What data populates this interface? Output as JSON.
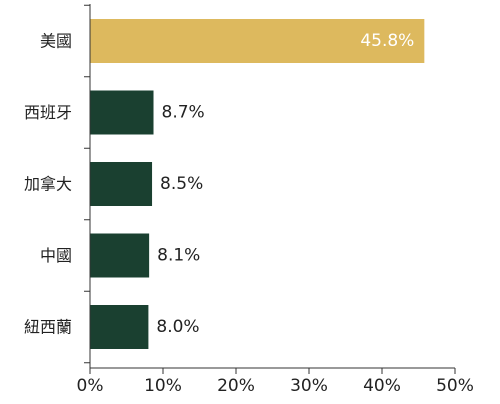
{
  "chart_data": {
    "type": "bar",
    "orientation": "horizontal",
    "categories": [
      "美國",
      "西班牙",
      "加拿大",
      "中國",
      "紐西蘭"
    ],
    "values": [
      45.8,
      8.7,
      8.5,
      8.1,
      8.0
    ],
    "value_labels": [
      "45.8%",
      "8.7%",
      "8.5%",
      "8.1%",
      "8.0%"
    ],
    "xlim": [
      0,
      50
    ],
    "x_ticks": [
      0,
      10,
      20,
      30,
      40,
      50
    ],
    "x_tick_labels": [
      "0%",
      "10%",
      "20%",
      "30%",
      "40%",
      "50%"
    ],
    "title": "",
    "xlabel": "",
    "ylabel": "",
    "grid": false,
    "colors": {
      "highlight": "#DDB95E",
      "default": "#1A4030",
      "axis": "#333333",
      "text": "#222222",
      "label_inside": "#ffffff"
    }
  }
}
